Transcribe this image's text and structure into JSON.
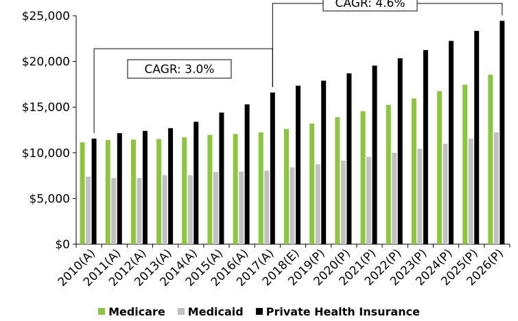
{
  "chart_data": {
    "type": "bar",
    "categories": [
      "2010(A)",
      "2011(A)",
      "2012(A)",
      "2013(A)",
      "2014(A)",
      "2015(A)",
      "2016(A)",
      "2017(A)",
      "2018(E)",
      "2019(P)",
      "2020(P)",
      "2021(P)",
      "2022(P)",
      "2023(P)",
      "2024(P)",
      "2025(P)",
      "2026(P)"
    ],
    "series": [
      {
        "name": "Medicare",
        "color": "#8cc63f",
        "values": [
          11150,
          11400,
          11450,
          11500,
          11700,
          11950,
          12050,
          12250,
          12600,
          13200,
          13900,
          14550,
          15250,
          15950,
          16750,
          17450,
          18550
        ]
      },
      {
        "name": "Medicaid",
        "color": "#c0c0c0",
        "values": [
          7400,
          7250,
          7250,
          7550,
          7550,
          7900,
          7950,
          8050,
          8400,
          8750,
          9150,
          9550,
          10000,
          10450,
          11000,
          11550,
          12250
        ]
      },
      {
        "name": "Private Health Insurance",
        "color": "#000000",
        "values": [
          11550,
          12150,
          12400,
          12700,
          13400,
          14400,
          15300,
          16600,
          17350,
          17900,
          18700,
          19550,
          20350,
          21250,
          22250,
          23350,
          24450
        ]
      }
    ],
    "yticks": [
      "$0",
      "$5,000",
      "$10,000",
      "$15,000",
      "$20,000",
      "$25,000"
    ],
    "ylim": [
      0,
      25000
    ],
    "grid": false,
    "legend_position": "bottom",
    "annotations": [
      {
        "text": "CAGR: 3.0%",
        "from": "2010(A)",
        "to": "2017(A)"
      },
      {
        "text": "CAGR: 4.6%",
        "from": "2017(A)",
        "to": "2026(P)"
      }
    ]
  }
}
